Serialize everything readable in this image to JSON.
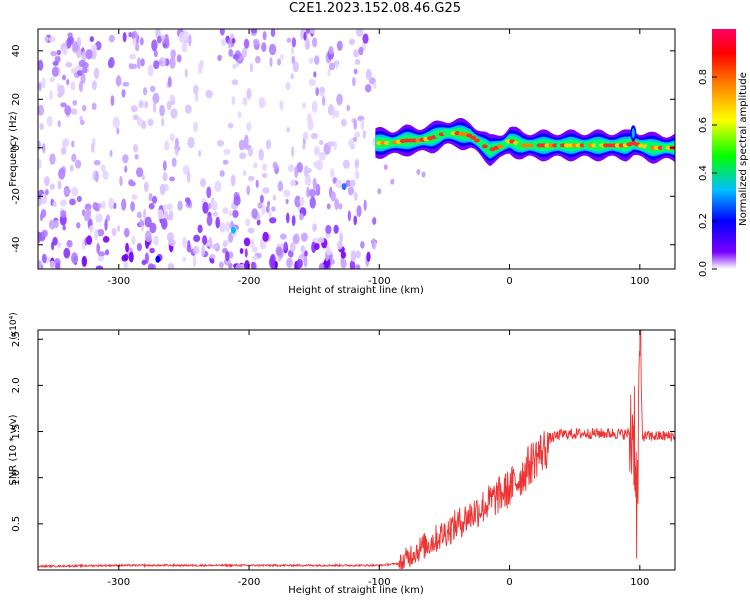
{
  "page_title": "C2E1.2023.152.08.46.G25",
  "chart_data": [
    {
      "type": "heatmap",
      "title": "C2E1.2023.152.08.46.G25",
      "xlabel": "Height of straight line (km)",
      "ylabel": "Frequency (Hz)",
      "xlim": [
        -362,
        127
      ],
      "ylim": [
        -50,
        49
      ],
      "xticks": [
        -300,
        -200,
        -100,
        0,
        100
      ],
      "yticks": [
        -40,
        -20,
        0,
        20,
        40
      ],
      "colorbar": {
        "label": "Normalized spectral amplitude",
        "range": [
          0,
          1
        ],
        "ticks": [
          0.0,
          0.2,
          0.4,
          0.6,
          0.8
        ],
        "colormap": [
          "#ffffff",
          "#7a00ff",
          "#0000ff",
          "#00bfff",
          "#00ff00",
          "#ffff00",
          "#ff8000",
          "#ff0000",
          "#ff0066"
        ]
      },
      "noise_region": {
        "x_range": [
          -362,
          -103
        ],
        "y_range": [
          -50,
          49
        ]
      },
      "signal_trace": {
        "x": [
          -103,
          -90,
          -80,
          -70,
          -60,
          -50,
          -40,
          -30,
          -20,
          -15,
          -10,
          -5,
          0,
          5,
          10,
          20,
          40,
          60,
          80,
          90,
          95,
          100,
          110,
          127
        ],
        "y": [
          2,
          2,
          3,
          3,
          4,
          6,
          6,
          5,
          1,
          -1,
          0,
          1,
          3,
          2,
          1,
          1,
          1,
          1,
          1,
          1,
          2,
          1,
          0,
          0
        ]
      }
    },
    {
      "type": "line",
      "xlabel": "Height of straight line (km)",
      "ylabel": "SNR (10 * v/v)",
      "y_multiplier": "(x10⁴)",
      "xlim": [
        -362,
        127
      ],
      "ylim": [
        0,
        2.6
      ],
      "xticks": [
        -300,
        -200,
        -100,
        0,
        100
      ],
      "yticks": [
        0.5,
        1.0,
        1.5,
        2.0,
        2.5
      ],
      "series": [
        {
          "color": "#ee3333",
          "envelope": {
            "x": [
              -362,
              -300,
              -200,
              -100,
              -85,
              -75,
              -60,
              -40,
              -20,
              0,
              10,
              20,
              30,
              40,
              60,
              80,
              90,
              93,
              96,
              98,
              100,
              102,
              110,
              127
            ],
            "y": [
              0.04,
              0.05,
              0.05,
              0.05,
              0.07,
              0.22,
              0.35,
              0.55,
              0.75,
              0.95,
              1.1,
              1.3,
              1.42,
              1.47,
              1.48,
              1.48,
              1.47,
              1.5,
              1.55,
              0.5,
              2.6,
              1.45,
              1.45,
              1.45
            ]
          }
        }
      ]
    }
  ]
}
